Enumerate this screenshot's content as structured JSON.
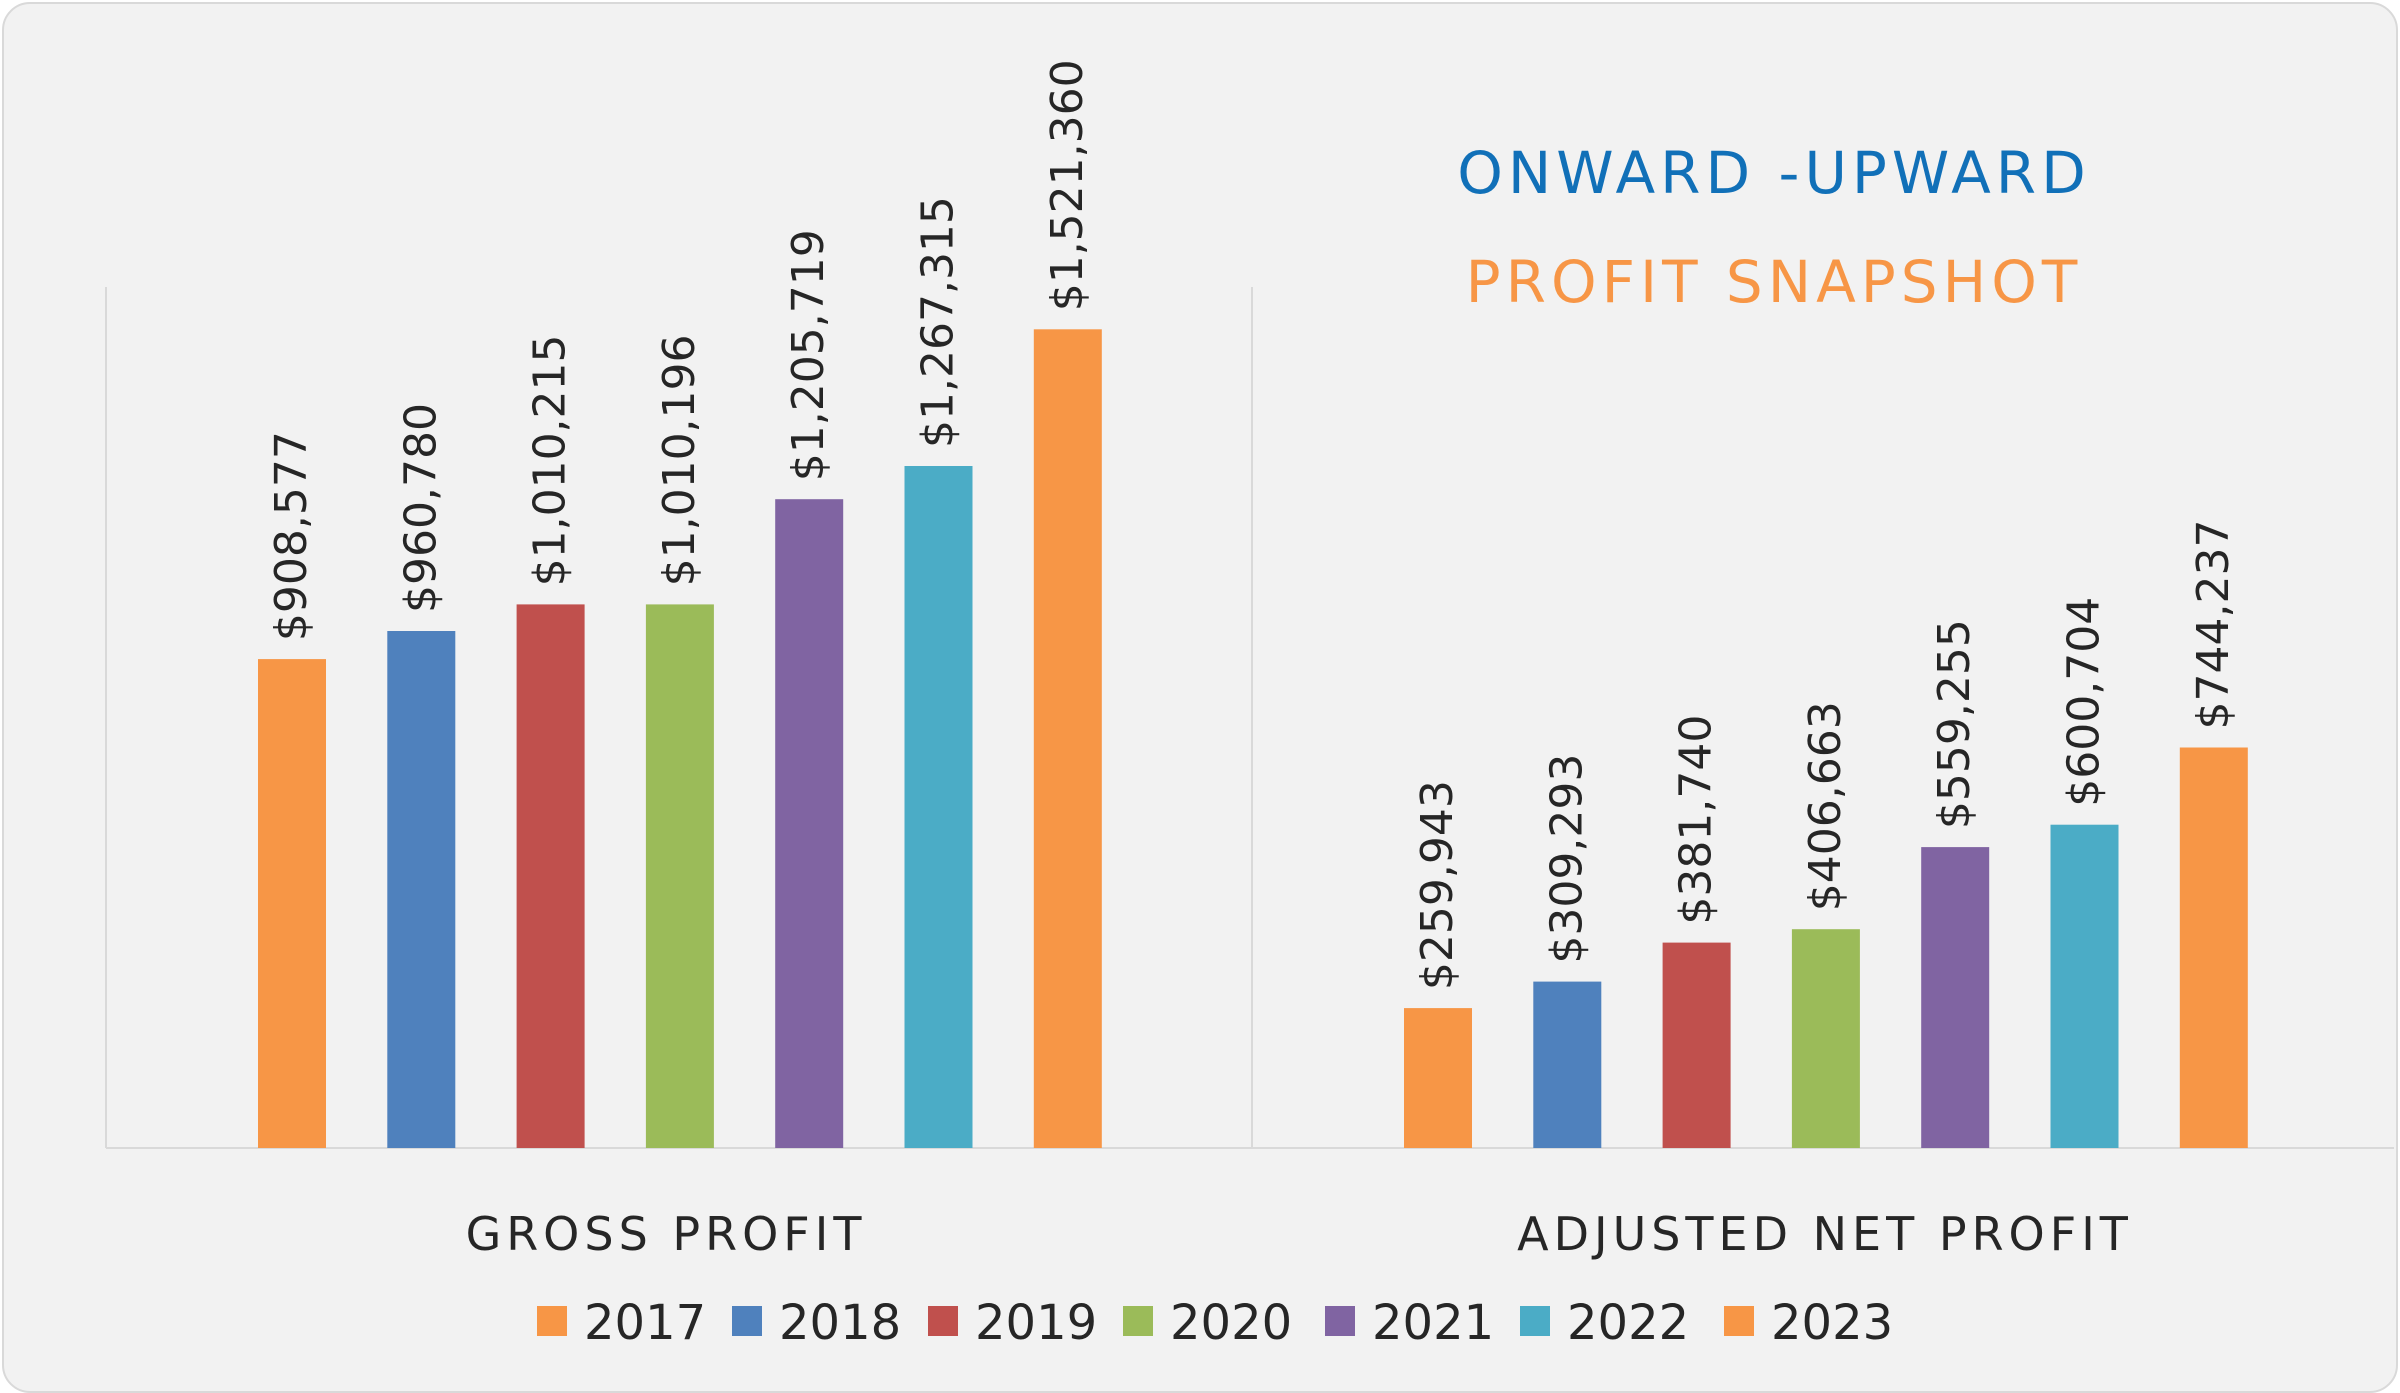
{
  "chart_data": {
    "type": "bar",
    "title": "ONWARD -UPWARD",
    "subtitle": "PROFIT SNAPSHOT",
    "categories": [
      "GROSS PROFIT",
      "ADJUSTED NET PROFIT"
    ],
    "series": [
      {
        "name": "2017",
        "color": "#f79646",
        "values": [
          908577,
          259943
        ],
        "labels": [
          "$908,577",
          "$259,943"
        ]
      },
      {
        "name": "2018",
        "color": "#4f81bd",
        "values": [
          960780,
          309293
        ],
        "labels": [
          "$960,780",
          "$309,293"
        ]
      },
      {
        "name": "2019",
        "color": "#c0504d",
        "values": [
          1010215,
          381740
        ],
        "labels": [
          "$1,010,215",
          "$381,740"
        ]
      },
      {
        "name": "2020",
        "color": "#9bbb59",
        "values": [
          1010196,
          406663
        ],
        "labels": [
          "$1,010,196",
          "$406,663"
        ]
      },
      {
        "name": "2021",
        "color": "#8064a2",
        "values": [
          1205719,
          559255
        ],
        "labels": [
          "$1,205,719",
          "$559,255"
        ]
      },
      {
        "name": "2022",
        "color": "#4bacc6",
        "values": [
          1267315,
          600704
        ],
        "labels": [
          "$1,267,315",
          "$600,704"
        ]
      },
      {
        "name": "2023",
        "color": "#f79646",
        "values": [
          1521360,
          744237
        ],
        "labels": [
          "$1,521,360",
          "$744,237"
        ]
      }
    ],
    "ylim": [
      0,
      1600000
    ],
    "grid": false,
    "legend": "bottom",
    "data_labels": "rotated vertical above bars"
  }
}
